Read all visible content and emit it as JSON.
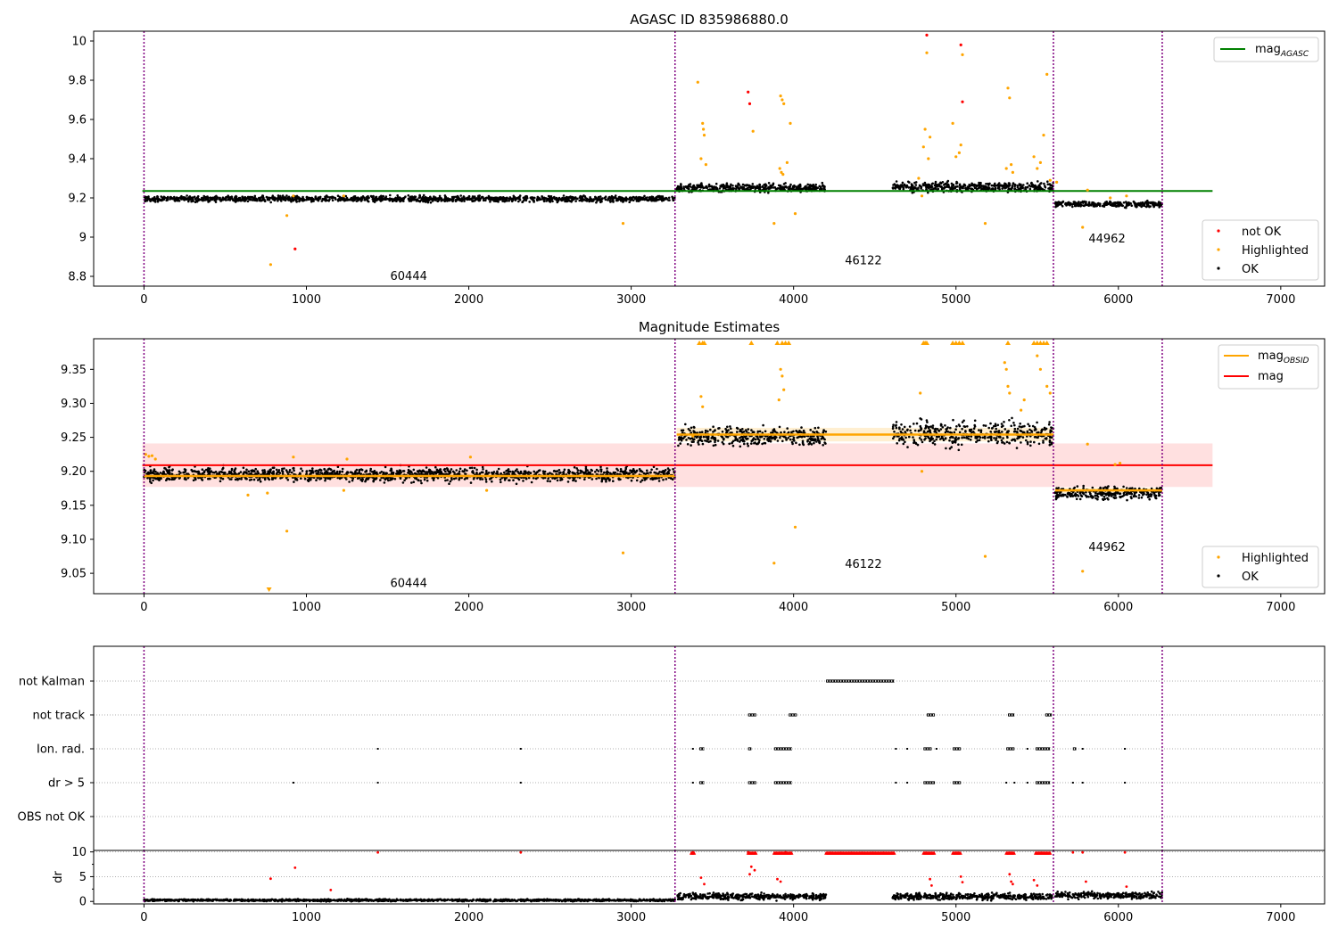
{
  "chart_data": [
    {
      "type": "scatter",
      "title": "AGASC ID 835986880.0",
      "xlim": [
        -310,
        7270
      ],
      "ylim": [
        8.75,
        10.05
      ],
      "xticks": [
        0,
        1000,
        2000,
        3000,
        4000,
        5000,
        6000,
        7000
      ],
      "yticks": [
        8.8,
        9.0,
        9.2,
        9.4,
        9.6,
        9.8,
        10.0
      ],
      "obs_boundaries": [
        0,
        3270,
        5600,
        6270
      ],
      "obs_labels": [
        {
          "text": "60444",
          "x": 1630,
          "y": 8.8
        },
        {
          "text": "46122",
          "x": 4430,
          "y": 8.88
        },
        {
          "text": "44962",
          "x": 5930,
          "y": 8.99
        }
      ],
      "reference_line": {
        "name": "mag",
        "sub": "AGASC",
        "value": 9.235,
        "x": [
          -10,
          6580
        ],
        "color": "#008000"
      },
      "legend_lines": [
        {
          "name": "mag",
          "sub": "AGASC",
          "color": "#008000"
        }
      ],
      "legend_markers": [
        {
          "name": "not OK",
          "color": "#ff0000"
        },
        {
          "name": "Highlighted",
          "color": "#ffa500"
        },
        {
          "name": "OK",
          "color": "#000000"
        }
      ],
      "ok_segments": [
        {
          "x": [
            0,
            3270
          ],
          "y": 9.195,
          "spread": 0.018
        },
        {
          "x": [
            3280,
            4200
          ],
          "y": 9.252,
          "spread": 0.025
        },
        {
          "x": [
            4610,
            5600
          ],
          "y": 9.255,
          "spread": 0.03
        },
        {
          "x": [
            5610,
            6270
          ],
          "y": 9.168,
          "spread": 0.018
        }
      ],
      "highlighted_points": [
        [
          780,
          8.86
        ],
        [
          880,
          9.11
        ],
        [
          920,
          9.21
        ],
        [
          2950,
          9.07
        ],
        [
          1230,
          9.21
        ],
        [
          3410,
          9.79
        ],
        [
          3430,
          9.4
        ],
        [
          3440,
          9.58
        ],
        [
          3445,
          9.55
        ],
        [
          3450,
          9.52
        ],
        [
          3460,
          9.37
        ],
        [
          3750,
          9.54
        ],
        [
          3880,
          9.07
        ],
        [
          3920,
          9.72
        ],
        [
          3930,
          9.7
        ],
        [
          3940,
          9.68
        ],
        [
          3915,
          9.35
        ],
        [
          3925,
          9.33
        ],
        [
          3935,
          9.32
        ],
        [
          3960,
          9.38
        ],
        [
          3980,
          9.58
        ],
        [
          4010,
          9.12
        ],
        [
          4800,
          9.46
        ],
        [
          4810,
          9.55
        ],
        [
          4820,
          9.94
        ],
        [
          4830,
          9.4
        ],
        [
          4840,
          9.51
        ],
        [
          4770,
          9.3
        ],
        [
          4790,
          9.21
        ],
        [
          4980,
          9.58
        ],
        [
          5000,
          9.41
        ],
        [
          5020,
          9.43
        ],
        [
          5030,
          9.47
        ],
        [
          5040,
          9.93
        ],
        [
          5180,
          9.07
        ],
        [
          5320,
          9.76
        ],
        [
          5330,
          9.71
        ],
        [
          5340,
          9.37
        ],
        [
          5310,
          9.35
        ],
        [
          5350,
          9.33
        ],
        [
          5480,
          9.41
        ],
        [
          5500,
          9.35
        ],
        [
          5520,
          9.38
        ],
        [
          5540,
          9.52
        ],
        [
          5560,
          9.83
        ],
        [
          5580,
          9.29
        ],
        [
          5620,
          9.28
        ],
        [
          5780,
          9.05
        ],
        [
          5810,
          9.24
        ],
        [
          5950,
          9.2
        ],
        [
          6050,
          9.21
        ]
      ],
      "not_ok_points": [
        [
          930,
          8.94
        ],
        [
          3720,
          9.74
        ],
        [
          3730,
          9.68
        ],
        [
          4820,
          10.03
        ],
        [
          5030,
          9.98
        ],
        [
          5040,
          9.69
        ]
      ]
    },
    {
      "type": "scatter",
      "title": "Magnitude Estimates",
      "xlim": [
        -310,
        7270
      ],
      "ylim": [
        9.02,
        9.395
      ],
      "xticks": [
        0,
        1000,
        2000,
        3000,
        4000,
        5000,
        6000,
        7000
      ],
      "yticks": [
        9.05,
        9.1,
        9.15,
        9.2,
        9.25,
        9.3,
        9.35
      ],
      "ytick_labels": [
        "9.05",
        "9.10",
        "9.15",
        "9.20",
        "9.25",
        "9.30",
        "9.35"
      ],
      "obs_boundaries": [
        0,
        3270,
        5600,
        6270
      ],
      "obs_labels": [
        {
          "text": "60444",
          "x": 1630,
          "y": 9.035
        },
        {
          "text": "46122",
          "x": 4430,
          "y": 9.063
        },
        {
          "text": "44962",
          "x": 5930,
          "y": 9.088
        }
      ],
      "mag_line": {
        "name": "mag",
        "value": 9.209,
        "band": [
          9.177,
          9.241
        ],
        "x": [
          -10,
          6580
        ],
        "color": "#ff0000"
      },
      "obsid_segments": [
        {
          "name": "mag",
          "sub": "OBSID",
          "x": [
            0,
            3270
          ],
          "value": 9.193,
          "band": [
            9.188,
            9.198
          ]
        },
        {
          "x": [
            3280,
            5600
          ],
          "value": 9.254,
          "band": [
            9.244,
            9.264
          ]
        },
        {
          "x": [
            5610,
            6270
          ],
          "value": 9.172,
          "band": [
            9.168,
            9.176
          ]
        }
      ],
      "legend_lines": [
        {
          "name": "mag",
          "sub": "OBSID",
          "color": "#ffa500"
        },
        {
          "name": "mag",
          "color": "#ff0000"
        }
      ],
      "legend_markers": [
        {
          "name": "Highlighted",
          "color": "#ffa500"
        },
        {
          "name": "OK",
          "color": "#000000"
        }
      ],
      "ok_segments": [
        {
          "x": [
            0,
            3270
          ],
          "y": 9.195,
          "spread": 0.012
        },
        {
          "x": [
            3280,
            4200
          ],
          "y": 9.252,
          "spread": 0.016
        },
        {
          "x": [
            4610,
            5600
          ],
          "y": 9.255,
          "spread": 0.022
        },
        {
          "x": [
            5610,
            6270
          ],
          "y": 9.168,
          "spread": 0.011
        }
      ],
      "highlighted_points": [
        [
          10,
          9.225
        ],
        [
          30,
          9.222
        ],
        [
          50,
          9.223
        ],
        [
          70,
          9.218
        ],
        [
          640,
          9.165
        ],
        [
          760,
          9.168
        ],
        [
          880,
          9.112
        ],
        [
          920,
          9.221
        ],
        [
          1230,
          9.172
        ],
        [
          1250,
          9.218
        ],
        [
          2010,
          9.221
        ],
        [
          2110,
          9.172
        ],
        [
          2950,
          9.08
        ],
        [
          3380,
          9.252
        ],
        [
          3430,
          9.31
        ],
        [
          3440,
          9.295
        ],
        [
          3880,
          9.065
        ],
        [
          3920,
          9.35
        ],
        [
          3930,
          9.34
        ],
        [
          3940,
          9.32
        ],
        [
          3910,
          9.305
        ],
        [
          4010,
          9.118
        ],
        [
          4780,
          9.315
        ],
        [
          4790,
          9.2
        ],
        [
          5180,
          9.075
        ],
        [
          5300,
          9.36
        ],
        [
          5310,
          9.35
        ],
        [
          5320,
          9.325
        ],
        [
          5330,
          9.315
        ],
        [
          5400,
          9.29
        ],
        [
          5420,
          9.305
        ],
        [
          5500,
          9.37
        ],
        [
          5520,
          9.35
        ],
        [
          5560,
          9.325
        ],
        [
          5580,
          9.315
        ],
        [
          5780,
          9.053
        ],
        [
          5810,
          9.24
        ],
        [
          5980,
          9.21
        ],
        [
          6010,
          9.212
        ]
      ],
      "clipped_top_x": [
        3420,
        3440,
        3450,
        3740,
        3900,
        3930,
        3950,
        3970,
        4800,
        4810,
        4820,
        4980,
        5000,
        5020,
        5040,
        5320,
        5480,
        5500,
        5520,
        5540,
        5560
      ],
      "clipped_bottom_x": [
        770
      ]
    },
    {
      "type": "scatter",
      "title": "",
      "xlim": [
        -310,
        7270
      ],
      "categories": [
        "not Kalman",
        "not track",
        "Ion. rad.",
        "dr > 5",
        "OBS not OK"
      ],
      "obs_boundaries": [
        0,
        3270,
        5600,
        6270
      ],
      "flags": {
        "not Kalman": [
          [
            4200,
            4620
          ]
        ],
        "not track": [
          [
            3720,
            3770
          ],
          [
            3970,
            4020
          ],
          [
            4820,
            4870
          ],
          [
            5320,
            5360
          ],
          [
            5550,
            5590
          ]
        ],
        "Ion. rad.": [
          [
            1440,
            1442
          ],
          [
            2320,
            2322
          ],
          [
            3380,
            3385
          ],
          [
            3420,
            3450
          ],
          [
            3720,
            3740
          ],
          [
            3880,
            3990
          ],
          [
            4630,
            4635
          ],
          [
            4700,
            4705
          ],
          [
            4800,
            4850
          ],
          [
            4880,
            4885
          ],
          [
            4980,
            5030
          ],
          [
            5310,
            5360
          ],
          [
            5440,
            5445
          ],
          [
            5490,
            5580
          ],
          [
            5720,
            5740
          ],
          [
            5780,
            5790
          ],
          [
            6040,
            6045
          ]
        ],
        "dr > 5": [
          [
            920,
            922
          ],
          [
            1440,
            1442
          ],
          [
            2320,
            2322
          ],
          [
            3380,
            3385
          ],
          [
            3420,
            3450
          ],
          [
            3720,
            3770
          ],
          [
            3880,
            3990
          ],
          [
            4630,
            4635
          ],
          [
            4700,
            4705
          ],
          [
            4800,
            4870
          ],
          [
            4980,
            5030
          ],
          [
            5310,
            5320
          ],
          [
            5360,
            5365
          ],
          [
            5440,
            5445
          ],
          [
            5490,
            5580
          ],
          [
            5720,
            5725
          ],
          [
            5780,
            5790
          ],
          [
            6040,
            6045
          ]
        ],
        "OBS not OK": []
      }
    },
    {
      "type": "scatter",
      "title": "",
      "ylabel": "dr",
      "xlim": [
        -310,
        7270
      ],
      "ylim": [
        -0.5,
        10.3
      ],
      "xticks": [
        0,
        1000,
        2000,
        3000,
        4000,
        5000,
        6000,
        7000
      ],
      "yticks": [
        0,
        5,
        10
      ],
      "ok_segments": [
        {
          "x": [
            0,
            3270
          ],
          "y": 0.25,
          "spread": 0.25
        },
        {
          "x": [
            3280,
            4200
          ],
          "y": 1.0,
          "spread": 0.8
        },
        {
          "x": [
            4610,
            5600
          ],
          "y": 1.0,
          "spread": 0.8
        },
        {
          "x": [
            5610,
            6270
          ],
          "y": 1.2,
          "spread": 0.8
        }
      ],
      "red_points": [
        [
          780,
          4.6
        ],
        [
          930,
          6.8
        ],
        [
          1150,
          2.3
        ],
        [
          1440,
          9.9
        ],
        [
          2320,
          9.9
        ],
        [
          3380,
          9.9
        ],
        [
          3430,
          4.8
        ],
        [
          3450,
          3.5
        ],
        [
          3720,
          9.9
        ],
        [
          3740,
          7.0
        ],
        [
          3760,
          6.3
        ],
        [
          3730,
          5.5
        ],
        [
          3900,
          4.5
        ],
        [
          3920,
          4.0
        ],
        [
          3950,
          9.9
        ],
        [
          4840,
          4.5
        ],
        [
          4850,
          3.2
        ],
        [
          5030,
          5.0
        ],
        [
          5040,
          3.9
        ],
        [
          5330,
          5.5
        ],
        [
          5340,
          4.0
        ],
        [
          5350,
          3.5
        ],
        [
          5480,
          4.3
        ],
        [
          5500,
          3.2
        ],
        [
          5720,
          9.9
        ],
        [
          5780,
          9.9
        ],
        [
          5800,
          4.0
        ],
        [
          6040,
          9.9
        ],
        [
          6050,
          3.0
        ]
      ],
      "red_saturated_ranges": [
        [
          3370,
          3390
        ],
        [
          3720,
          3770
        ],
        [
          3880,
          3990
        ],
        [
          4200,
          4620
        ],
        [
          4800,
          4870
        ],
        [
          4980,
          5030
        ],
        [
          5310,
          5360
        ],
        [
          5490,
          5580
        ]
      ]
    }
  ]
}
